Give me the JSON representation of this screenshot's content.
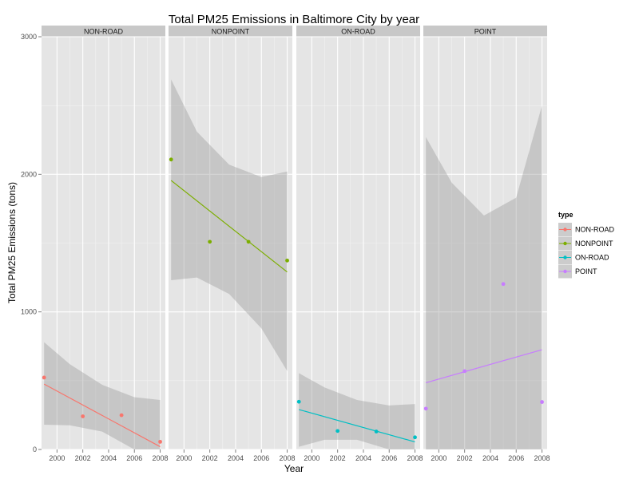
{
  "chart_data": {
    "type": "scatter",
    "title": "Total PM25 Emissions in Baltimore City by year",
    "xlabel": "Year",
    "ylabel": "Total PM25 Emissions (tons)",
    "xlim": [
      1998.8,
      2008.4
    ],
    "ylim": [
      0,
      3000
    ],
    "x_ticks": [
      2000,
      2002,
      2004,
      2006,
      2008
    ],
    "y_ticks": [
      0,
      1000,
      2000,
      3000
    ],
    "grid": true,
    "legend": {
      "title": "type",
      "placement": "right"
    },
    "smooth": "linear fit with confidence band",
    "panels": [
      {
        "name": "NON-ROAD",
        "color": "#F8766D",
        "points": [
          [
            1999,
            522.9
          ],
          [
            2002,
            240.8
          ],
          [
            2005,
            248.9
          ],
          [
            2008,
            55.8
          ]
        ],
        "fit": [
          [
            1999,
            475
          ],
          [
            2008,
            20
          ]
        ],
        "band_upper": [
          [
            1999,
            780
          ],
          [
            2001,
            620
          ],
          [
            2003.5,
            470
          ],
          [
            2006,
            380
          ],
          [
            2008,
            360
          ]
        ],
        "band_lower": [
          [
            1999,
            180
          ],
          [
            2001,
            175
          ],
          [
            2003.5,
            130
          ],
          [
            2006,
            0
          ],
          [
            2008,
            0
          ]
        ]
      },
      {
        "name": "NONPOINT",
        "color": "#7CAE00",
        "points": [
          [
            1999,
            2107.6
          ],
          [
            2002,
            1509.5
          ],
          [
            2005,
            1509.5
          ],
          [
            2008,
            1373.2
          ]
        ],
        "fit": [
          [
            1999,
            1955
          ],
          [
            2008,
            1290
          ]
        ],
        "band_upper": [
          [
            1999,
            2690
          ],
          [
            2001,
            2310
          ],
          [
            2003.5,
            2070
          ],
          [
            2006,
            1980
          ],
          [
            2008,
            2020
          ]
        ],
        "band_lower": [
          [
            1999,
            1230
          ],
          [
            2001,
            1250
          ],
          [
            2003.5,
            1130
          ],
          [
            2006,
            880
          ],
          [
            2008,
            570
          ]
        ]
      },
      {
        "name": "ON-ROAD",
        "color": "#00BFC4",
        "points": [
          [
            1999,
            346.8
          ],
          [
            2002,
            134.3
          ],
          [
            2005,
            130.4
          ],
          [
            2008,
            88.3
          ]
        ],
        "fit": [
          [
            1999,
            290
          ],
          [
            2008,
            55
          ]
        ],
        "band_upper": [
          [
            1999,
            555
          ],
          [
            2001,
            450
          ],
          [
            2003.5,
            360
          ],
          [
            2006,
            320
          ],
          [
            2008,
            330
          ]
        ],
        "band_lower": [
          [
            1999,
            20
          ],
          [
            2001,
            70
          ],
          [
            2003.5,
            70
          ],
          [
            2006,
            0
          ],
          [
            2008,
            0
          ]
        ]
      },
      {
        "name": "POINT",
        "color": "#C77CFF",
        "points": [
          [
            1999,
            296.8
          ],
          [
            2002,
            569.3
          ],
          [
            2005,
            1202.5
          ],
          [
            2008,
            344.98
          ]
        ],
        "fit": [
          [
            1999,
            485
          ],
          [
            2008,
            725
          ]
        ],
        "band_upper": [
          [
            1999,
            2270
          ],
          [
            2001,
            1940
          ],
          [
            2003.5,
            1700
          ],
          [
            2006,
            1830
          ],
          [
            2008,
            2500
          ]
        ],
        "band_lower": [
          [
            1999,
            0
          ],
          [
            2008,
            0
          ]
        ]
      }
    ]
  }
}
